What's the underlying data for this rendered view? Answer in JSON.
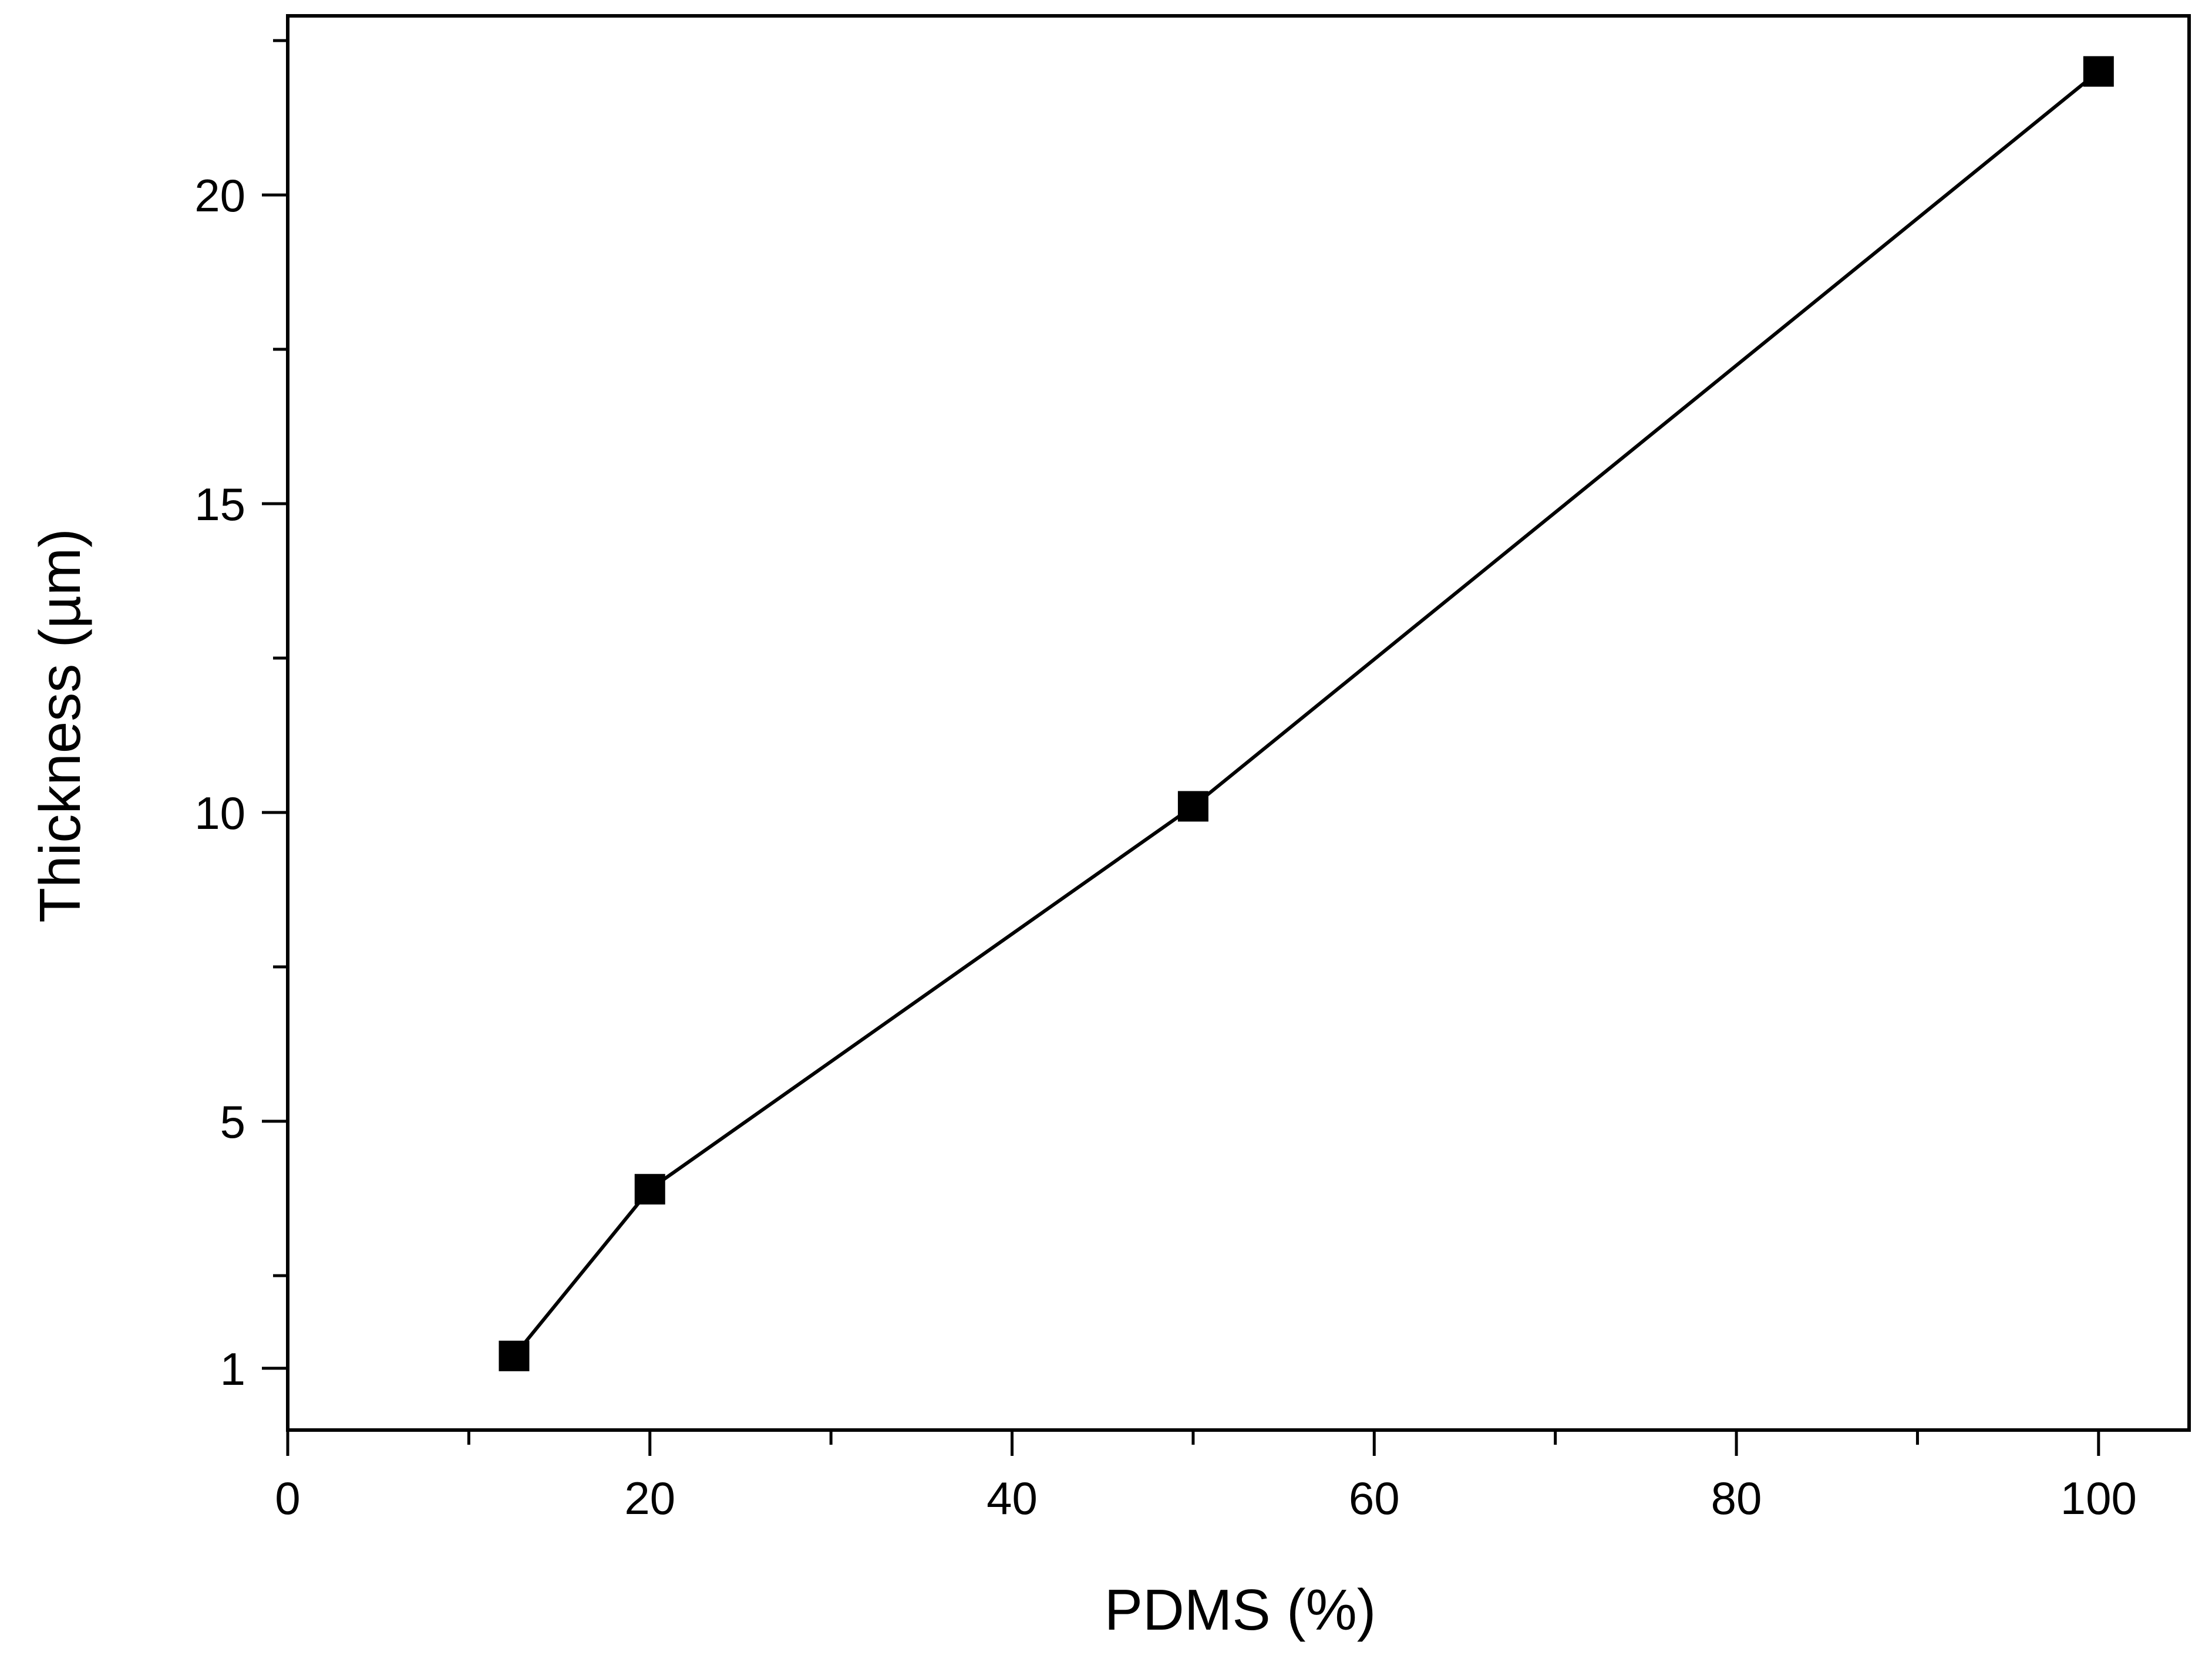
{
  "chart_data": {
    "type": "line",
    "title": "",
    "xlabel": "PDMS (%)",
    "ylabel": "Thickness (µm)",
    "xlim": [
      0,
      105
    ],
    "ylim": [
      0,
      22.9
    ],
    "x_ticks": [
      0,
      20,
      40,
      60,
      80,
      100
    ],
    "x_tick_labels": [
      "0",
      "20",
      "40",
      "60",
      "80",
      "100"
    ],
    "x_minor_ticks": [
      10,
      30,
      50,
      70,
      90
    ],
    "y_ticks": [
      1,
      5,
      10,
      15,
      20
    ],
    "y_tick_labels": [
      "1",
      "5",
      "10",
      "15",
      "20"
    ],
    "y_minor_ticks": [
      2.5,
      7.5,
      12.5,
      17.5,
      22.5
    ],
    "grid": false,
    "legend": "none",
    "series": [
      {
        "marker": "square",
        "color": "#000000",
        "x": [
          12.5,
          20,
          50,
          100
        ],
        "y": [
          1.2,
          3.9,
          10.1,
          22
        ]
      }
    ]
  }
}
